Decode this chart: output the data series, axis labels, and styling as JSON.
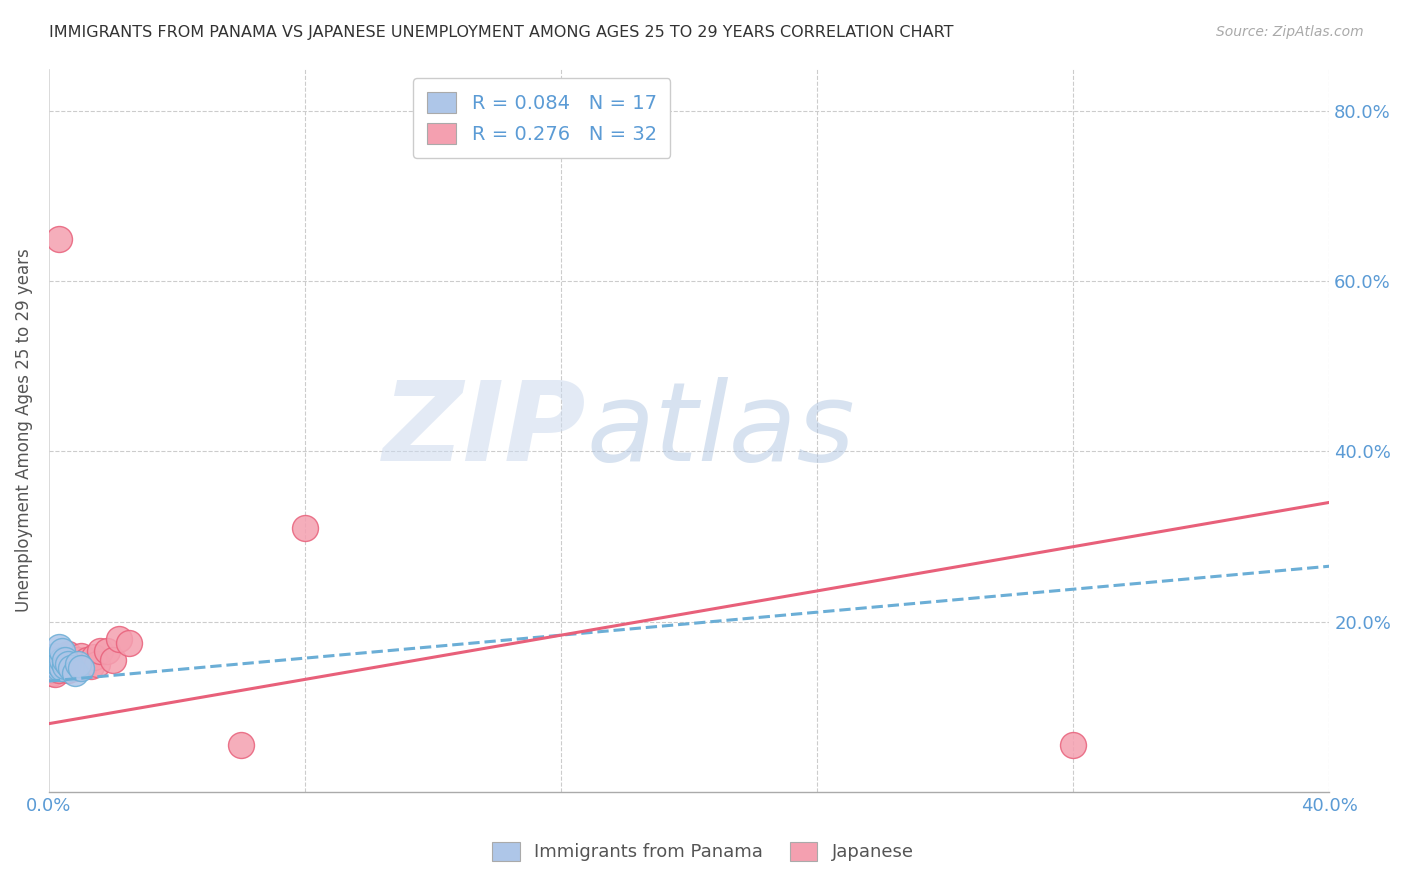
{
  "title": "IMMIGRANTS FROM PANAMA VS JAPANESE UNEMPLOYMENT AMONG AGES 25 TO 29 YEARS CORRELATION CHART",
  "source": "Source: ZipAtlas.com",
  "ylabel": "Unemployment Among Ages 25 to 29 years",
  "xlim": [
    0.0,
    0.4
  ],
  "ylim": [
    0.0,
    0.85
  ],
  "yticks": [
    0.0,
    0.2,
    0.4,
    0.6,
    0.8
  ],
  "xticks": [
    0.0,
    0.08,
    0.16,
    0.24,
    0.32,
    0.4
  ],
  "series1_color": "#aec6e8",
  "series2_color": "#f4a0b0",
  "line1_color": "#6baed6",
  "line2_color": "#e8607a",
  "legend_r1": "0.084",
  "legend_n1": "17",
  "legend_r2": "0.276",
  "legend_n2": "32",
  "panama_x": [
    0.001,
    0.002,
    0.002,
    0.002,
    0.003,
    0.003,
    0.003,
    0.004,
    0.004,
    0.004,
    0.005,
    0.005,
    0.006,
    0.007,
    0.008,
    0.009,
    0.01
  ],
  "panama_y": [
    0.155,
    0.145,
    0.15,
    0.16,
    0.145,
    0.15,
    0.17,
    0.145,
    0.155,
    0.165,
    0.148,
    0.155,
    0.15,
    0.145,
    0.14,
    0.15,
    0.145
  ],
  "japanese_x": [
    0.001,
    0.001,
    0.002,
    0.002,
    0.002,
    0.003,
    0.003,
    0.004,
    0.004,
    0.005,
    0.005,
    0.006,
    0.006,
    0.007,
    0.008,
    0.008,
    0.009,
    0.01,
    0.011,
    0.012,
    0.013,
    0.014,
    0.015,
    0.016,
    0.018,
    0.02,
    0.022,
    0.025,
    0.06,
    0.08,
    0.32,
    0.003
  ],
  "japanese_y": [
    0.14,
    0.143,
    0.138,
    0.145,
    0.152,
    0.143,
    0.155,
    0.148,
    0.158,
    0.15,
    0.16,
    0.143,
    0.162,
    0.15,
    0.145,
    0.155,
    0.155,
    0.16,
    0.148,
    0.155,
    0.148,
    0.158,
    0.15,
    0.165,
    0.165,
    0.155,
    0.18,
    0.175,
    0.055,
    0.31,
    0.055,
    0.65
  ],
  "trend1_x": [
    0.0,
    0.4
  ],
  "trend1_y": [
    0.13,
    0.265
  ],
  "trend2_x": [
    0.0,
    0.4
  ],
  "trend2_y": [
    0.08,
    0.34
  ]
}
